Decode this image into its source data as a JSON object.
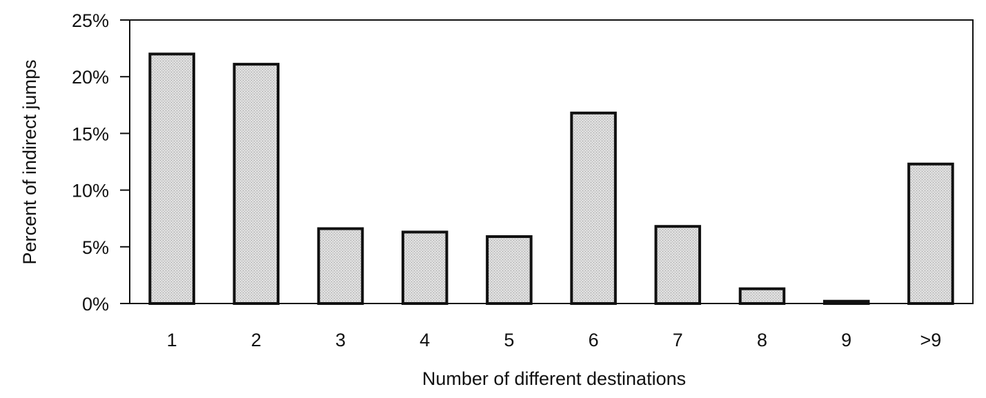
{
  "chart_data": {
    "type": "bar",
    "title": "",
    "xlabel": "Number of different destinations",
    "ylabel": "Percent of indirect jumps",
    "categories": [
      "1",
      "2",
      "3",
      "4",
      "5",
      "6",
      "7",
      "8",
      "9",
      ">9"
    ],
    "values": [
      22.0,
      21.1,
      6.6,
      6.3,
      5.9,
      16.8,
      6.8,
      1.3,
      0.2,
      12.3
    ],
    "ylim": [
      0,
      25
    ],
    "yticks": [
      "0%",
      "5%",
      "10%",
      "15%",
      "20%",
      "25%"
    ],
    "grid": false,
    "legend": "none",
    "bar_fill": "#d4d4d4",
    "bar_stroke": "#111111"
  }
}
